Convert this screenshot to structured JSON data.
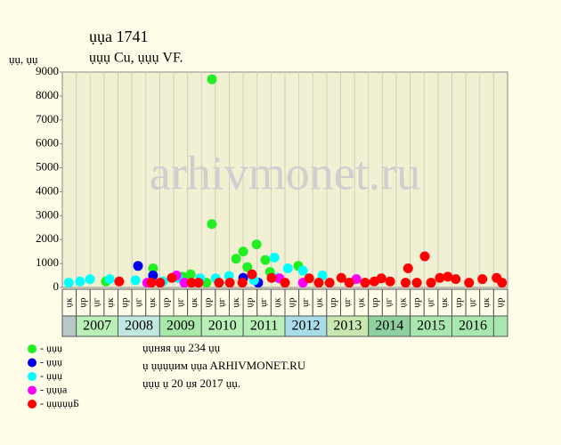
{
  "chart_data": {
    "type": "scatter",
    "title": "ụụa 1741",
    "subtitle": "ụụụ Cu, ụụụ VF.",
    "ylabel": "ụụ, ụụ",
    "watermark": "arhivmonet.ru",
    "notes": [
      "ụụняя ụụ 234 ụụ",
      "ụ ụụụụим ụụa ARHIVMONET.RU",
      "ụụụ ụ 20 ụя 2017 ụụ."
    ],
    "ylim": [
      0,
      9000
    ],
    "yticks": [
      0,
      1000,
      2000,
      3000,
      4000,
      5000,
      6000,
      7000,
      8000,
      9000
    ],
    "xlim": [
      2006.667,
      2017.333
    ],
    "periods": [
      "ụк",
      "ụр",
      "ụг",
      "ụк",
      "ụр",
      "ụг",
      "ụк",
      "ụр",
      "ụг",
      "ụк",
      "ụр",
      "ụг",
      "ụк",
      "ụр",
      "ụг",
      "ụк",
      "ụр",
      "ụг",
      "ụк",
      "ụр",
      "ụг",
      "ụк",
      "ụр",
      "ụг",
      "ụк",
      "ụр",
      "ụг",
      "ụк",
      "ụр",
      "ụг",
      "ụк",
      "ụр"
    ],
    "years": [
      "2007",
      "2008",
      "2009",
      "2010",
      "2011",
      "2012",
      "2013",
      "2014",
      "2015",
      "2016"
    ],
    "year_colors": [
      "#b8f0b8",
      "#c0e8e0",
      "#a8e8a8",
      "#b8f0b8",
      "#b8f0b8",
      "#a8dce8",
      "#c8e8b0",
      "#8fd0a0",
      "#a8e8b0",
      "#a8e8b0"
    ],
    "series": [
      {
        "name": "- ụụụ",
        "color": "#22ee22",
        "x": [
          2010.25,
          2010.25,
          2011.32,
          2011.0,
          2010.83,
          2011.53,
          2011.1,
          2012.32,
          2008.84,
          2011.64,
          2009.74,
          2007.71,
          2009.55,
          2010.12
        ],
        "values": [
          8700,
          2650,
          1800,
          1500,
          1200,
          1150,
          850,
          900,
          800,
          650,
          550,
          250,
          450,
          200
        ]
      },
      {
        "name": "- ụụụ",
        "color": "#0000ee",
        "x": [
          2008.48,
          2008.84,
          2011.0,
          2011.36
        ],
        "values": [
          900,
          500,
          400,
          200
        ]
      },
      {
        "name": "- ụụụ",
        "color": "#00ffff",
        "x": [
          2006.82,
          2007.09,
          2007.33,
          2007.8,
          2008.42,
          2009.08,
          2009.44,
          2009.97,
          2010.34,
          2010.66,
          2011.75,
          2012.07,
          2012.43,
          2012.9,
          2011.83,
          2011.26
        ],
        "values": [
          200,
          250,
          350,
          350,
          300,
          250,
          400,
          380,
          380,
          480,
          1250,
          800,
          700,
          500,
          400,
          300
        ]
      },
      {
        "name": "- ụụụa",
        "color": "#ff00ff",
        "x": [
          2008.7,
          2009.4,
          2009.59,
          2012.43,
          2013.71,
          2011.87
        ],
        "values": [
          200,
          500,
          200,
          200,
          350,
          380
        ]
      },
      {
        "name": "- ụụụụụБ",
        "color": "#ff0000",
        "x": [
          2008.03,
          2008.8,
          2009.01,
          2009.29,
          2009.76,
          2009.93,
          2010.42,
          2010.68,
          2010.98,
          2011.21,
          2011.68,
          2012.0,
          2012.58,
          2012.81,
          2013.07,
          2013.35,
          2013.54,
          2013.92,
          2014.14,
          2014.31,
          2014.52,
          2014.89,
          2014.95,
          2015.16,
          2015.35,
          2015.5,
          2015.71,
          2015.9,
          2016.09,
          2016.41,
          2016.73,
          2017.07,
          2017.2
        ],
        "values": [
          250,
          200,
          200,
          400,
          200,
          200,
          200,
          200,
          200,
          550,
          400,
          200,
          380,
          200,
          200,
          400,
          200,
          200,
          250,
          380,
          250,
          200,
          800,
          200,
          1300,
          200,
          400,
          450,
          350,
          200,
          350,
          400,
          200
        ]
      }
    ]
  }
}
